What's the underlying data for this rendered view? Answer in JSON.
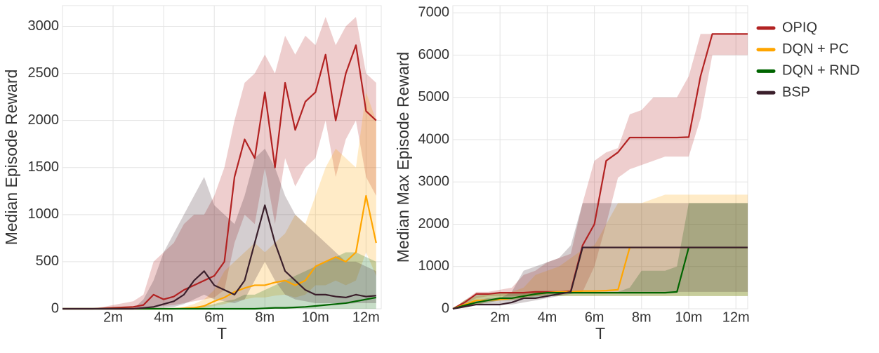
{
  "chart_data": [
    {
      "type": "line",
      "y_label": "Median Episode Reward",
      "x_label": "T",
      "x": [
        0,
        0.4,
        0.8,
        1.2,
        1.6,
        2.0,
        2.4,
        2.8,
        3.2,
        3.6,
        4.0,
        4.4,
        4.8,
        5.2,
        5.6,
        6.0,
        6.4,
        6.8,
        7.2,
        7.6,
        8.0,
        8.4,
        8.8,
        9.2,
        9.6,
        10.0,
        10.4,
        10.8,
        11.2,
        11.6,
        12.0,
        12.4
      ],
      "xlim": [
        0,
        12.6
      ],
      "xticks": [
        {
          "value": 2,
          "label": "2m"
        },
        {
          "value": 4,
          "label": "4m"
        },
        {
          "value": 6,
          "label": "6m"
        },
        {
          "value": 8,
          "label": "8m"
        },
        {
          "value": 10,
          "label": "10m"
        },
        {
          "value": 12,
          "label": "12m"
        }
      ],
      "ylim": [
        0,
        3220
      ],
      "yticks": [
        0,
        500,
        1000,
        1500,
        2000,
        2500,
        3000
      ],
      "grid": true,
      "series": [
        {
          "color": "#b22222",
          "values": [
            0,
            0,
            0,
            0,
            5,
            10,
            15,
            20,
            40,
            150,
            100,
            130,
            200,
            250,
            300,
            350,
            500,
            1400,
            1800,
            1600,
            2300,
            1500,
            2400,
            1900,
            2200,
            2300,
            2700,
            2000,
            2500,
            2800,
            2100,
            2000
          ],
          "lower": [
            0,
            0,
            0,
            0,
            0,
            0,
            0,
            0,
            0,
            20,
            30,
            40,
            60,
            80,
            100,
            120,
            200,
            700,
            1000,
            900,
            1500,
            900,
            1600,
            1300,
            1500,
            1600,
            2000,
            1400,
            1800,
            2000,
            1400,
            1200
          ],
          "upper": [
            0,
            0,
            0,
            5,
            20,
            40,
            60,
            80,
            150,
            500,
            600,
            700,
            900,
            1000,
            1000,
            1200,
            1500,
            2000,
            2400,
            2500,
            2700,
            2500,
            2900,
            2700,
            2900,
            2800,
            3100,
            2800,
            3000,
            3100,
            2500,
            2400
          ]
        },
        {
          "color": "#ffa500",
          "values": [
            0,
            0,
            0,
            0,
            0,
            0,
            0,
            0,
            0,
            0,
            0,
            0,
            5,
            10,
            30,
            80,
            120,
            180,
            220,
            250,
            250,
            280,
            300,
            250,
            300,
            450,
            500,
            550,
            500,
            600,
            1200,
            700
          ],
          "lower": [
            0,
            0,
            0,
            0,
            0,
            0,
            0,
            0,
            0,
            0,
            0,
            0,
            0,
            0,
            10,
            30,
            50,
            80,
            100,
            120,
            120,
            140,
            150,
            120,
            150,
            250,
            250,
            300,
            250,
            300,
            600,
            350
          ],
          "upper": [
            0,
            0,
            0,
            0,
            0,
            0,
            0,
            0,
            0,
            0,
            0,
            0,
            20,
            50,
            100,
            200,
            400,
            500,
            600,
            700,
            600,
            700,
            800,
            1000,
            900,
            1200,
            1500,
            1700,
            1600,
            1500,
            2300,
            2000
          ]
        },
        {
          "color": "#006400",
          "values": [
            0,
            0,
            0,
            0,
            0,
            0,
            0,
            0,
            0,
            0,
            0,
            0,
            0,
            0,
            0,
            0,
            0,
            0,
            0,
            0,
            5,
            10,
            10,
            15,
            20,
            30,
            40,
            50,
            60,
            80,
            100,
            120
          ],
          "lower": [
            0,
            0,
            0,
            0,
            0,
            0,
            0,
            0,
            0,
            0,
            0,
            0,
            0,
            0,
            0,
            0,
            0,
            0,
            0,
            0,
            0,
            0,
            0,
            0,
            0,
            0,
            0,
            0,
            0,
            0,
            0,
            0
          ],
          "upper": [
            0,
            0,
            0,
            0,
            0,
            0,
            0,
            0,
            0,
            0,
            0,
            0,
            10,
            20,
            30,
            50,
            80,
            100,
            150,
            150,
            200,
            250,
            300,
            350,
            400,
            450,
            500,
            550,
            600,
            600,
            550,
            500
          ]
        },
        {
          "color": "#3a1f2b",
          "values": [
            0,
            0,
            0,
            0,
            0,
            0,
            0,
            0,
            10,
            20,
            50,
            80,
            150,
            300,
            400,
            250,
            200,
            150,
            300,
            700,
            1100,
            700,
            400,
            300,
            200,
            150,
            150,
            130,
            120,
            150,
            130,
            140
          ],
          "lower": [
            0,
            0,
            0,
            0,
            0,
            0,
            0,
            0,
            0,
            0,
            10,
            20,
            50,
            100,
            150,
            100,
            80,
            60,
            100,
            300,
            500,
            300,
            150,
            100,
            80,
            60,
            60,
            60,
            50,
            60,
            60,
            60
          ],
          "upper": [
            0,
            0,
            0,
            0,
            0,
            0,
            0,
            0,
            100,
            300,
            600,
            800,
            1000,
            1200,
            1400,
            1100,
            1000,
            900,
            1200,
            1600,
            1700,
            1500,
            1200,
            1000,
            900,
            800,
            700,
            600,
            500,
            500,
            450,
            400
          ]
        }
      ]
    },
    {
      "type": "line",
      "y_label": "Median Max Episode Reward",
      "x_label": "T",
      "x": [
        0,
        0.5,
        1,
        1.5,
        2,
        2.5,
        3,
        3.5,
        4,
        4.5,
        5,
        5.5,
        6,
        6.5,
        7,
        7.5,
        8,
        8.5,
        9,
        9.5,
        10,
        10.5,
        11,
        11.5,
        12,
        12.5
      ],
      "xlim": [
        0,
        12.5
      ],
      "xticks": [
        {
          "value": 2,
          "label": "2m"
        },
        {
          "value": 4,
          "label": "4m"
        },
        {
          "value": 6,
          "label": "6m"
        },
        {
          "value": 8,
          "label": "8m"
        },
        {
          "value": 10,
          "label": "10m"
        },
        {
          "value": 12,
          "label": "12m"
        }
      ],
      "ylim": [
        0,
        7170
      ],
      "yticks": [
        0,
        1000,
        2000,
        3000,
        4000,
        5000,
        6000,
        7000
      ],
      "grid": true,
      "series": [
        {
          "name": "OPIQ",
          "color": "#b22222",
          "values": [
            0,
            150,
            350,
            350,
            380,
            380,
            380,
            400,
            400,
            400,
            420,
            1500,
            2000,
            3500,
            3700,
            4050,
            4050,
            4050,
            4050,
            4050,
            4060,
            5500,
            6500,
            6500,
            6500,
            6500
          ],
          "lower": [
            0,
            100,
            250,
            300,
            300,
            300,
            300,
            300,
            350,
            350,
            380,
            400,
            1000,
            2000,
            3100,
            3300,
            3400,
            3500,
            3600,
            3600,
            3600,
            4500,
            6000,
            6000,
            6000,
            6000
          ],
          "upper": [
            0,
            200,
            400,
            400,
            450,
            500,
            800,
            900,
            1100,
            1200,
            1300,
            2500,
            3500,
            3700,
            3800,
            4600,
            4700,
            5000,
            5000,
            5000,
            5500,
            6500,
            6500,
            6500,
            6500,
            6500
          ]
        },
        {
          "name": "DQN + PC",
          "color": "#ffa500",
          "values": [
            0,
            100,
            200,
            200,
            220,
            250,
            300,
            350,
            380,
            400,
            400,
            420,
            420,
            430,
            450,
            1450,
            1450,
            1450,
            1450,
            1450,
            1450,
            1450,
            1450,
            1450,
            1450,
            1450
          ],
          "lower": [
            0,
            50,
            100,
            150,
            200,
            200,
            250,
            300,
            300,
            300,
            300,
            300,
            300,
            300,
            300,
            300,
            300,
            300,
            300,
            300,
            300,
            300,
            300,
            300,
            300,
            300
          ],
          "upper": [
            0,
            200,
            300,
            350,
            350,
            400,
            500,
            800,
            900,
            1000,
            1200,
            1400,
            1500,
            2000,
            2500,
            2500,
            2500,
            2600,
            2700,
            2700,
            2700,
            2700,
            2700,
            2700,
            2700,
            2700
          ]
        },
        {
          "name": "DQN + RND",
          "color": "#006400",
          "values": [
            0,
            80,
            150,
            200,
            250,
            250,
            300,
            350,
            380,
            380,
            380,
            380,
            380,
            380,
            380,
            380,
            380,
            380,
            380,
            400,
            1450,
            1450,
            1450,
            1450,
            1450,
            1450
          ],
          "lower": [
            0,
            50,
            100,
            150,
            200,
            200,
            250,
            250,
            300,
            300,
            300,
            300,
            300,
            300,
            300,
            300,
            300,
            300,
            300,
            300,
            300,
            300,
            300,
            300,
            300,
            300
          ],
          "upper": [
            0,
            200,
            350,
            350,
            380,
            380,
            400,
            400,
            400,
            400,
            400,
            400,
            400,
            400,
            400,
            500,
            900,
            900,
            900,
            1000,
            2500,
            2500,
            2500,
            2500,
            2500,
            2500
          ]
        },
        {
          "name": "BSP",
          "color": "#3a1f2b",
          "values": [
            0,
            50,
            100,
            100,
            100,
            150,
            250,
            250,
            300,
            350,
            400,
            1450,
            1450,
            1450,
            1450,
            1450,
            1450,
            1450,
            1450,
            1450,
            1450,
            1450,
            1450,
            1450,
            1450,
            1450
          ],
          "lower": [
            0,
            50,
            100,
            100,
            100,
            100,
            150,
            200,
            250,
            300,
            350,
            400,
            400,
            400,
            400,
            400,
            400,
            400,
            400,
            400,
            400,
            400,
            400,
            400,
            400,
            400
          ],
          "upper": [
            0,
            100,
            200,
            250,
            250,
            400,
            900,
            1000,
            1100,
            1200,
            1500,
            2500,
            2500,
            2500,
            2500,
            2500,
            2500,
            2500,
            2500,
            2500,
            2500,
            2500,
            2500,
            2500,
            2500,
            2500
          ]
        }
      ]
    }
  ]
}
